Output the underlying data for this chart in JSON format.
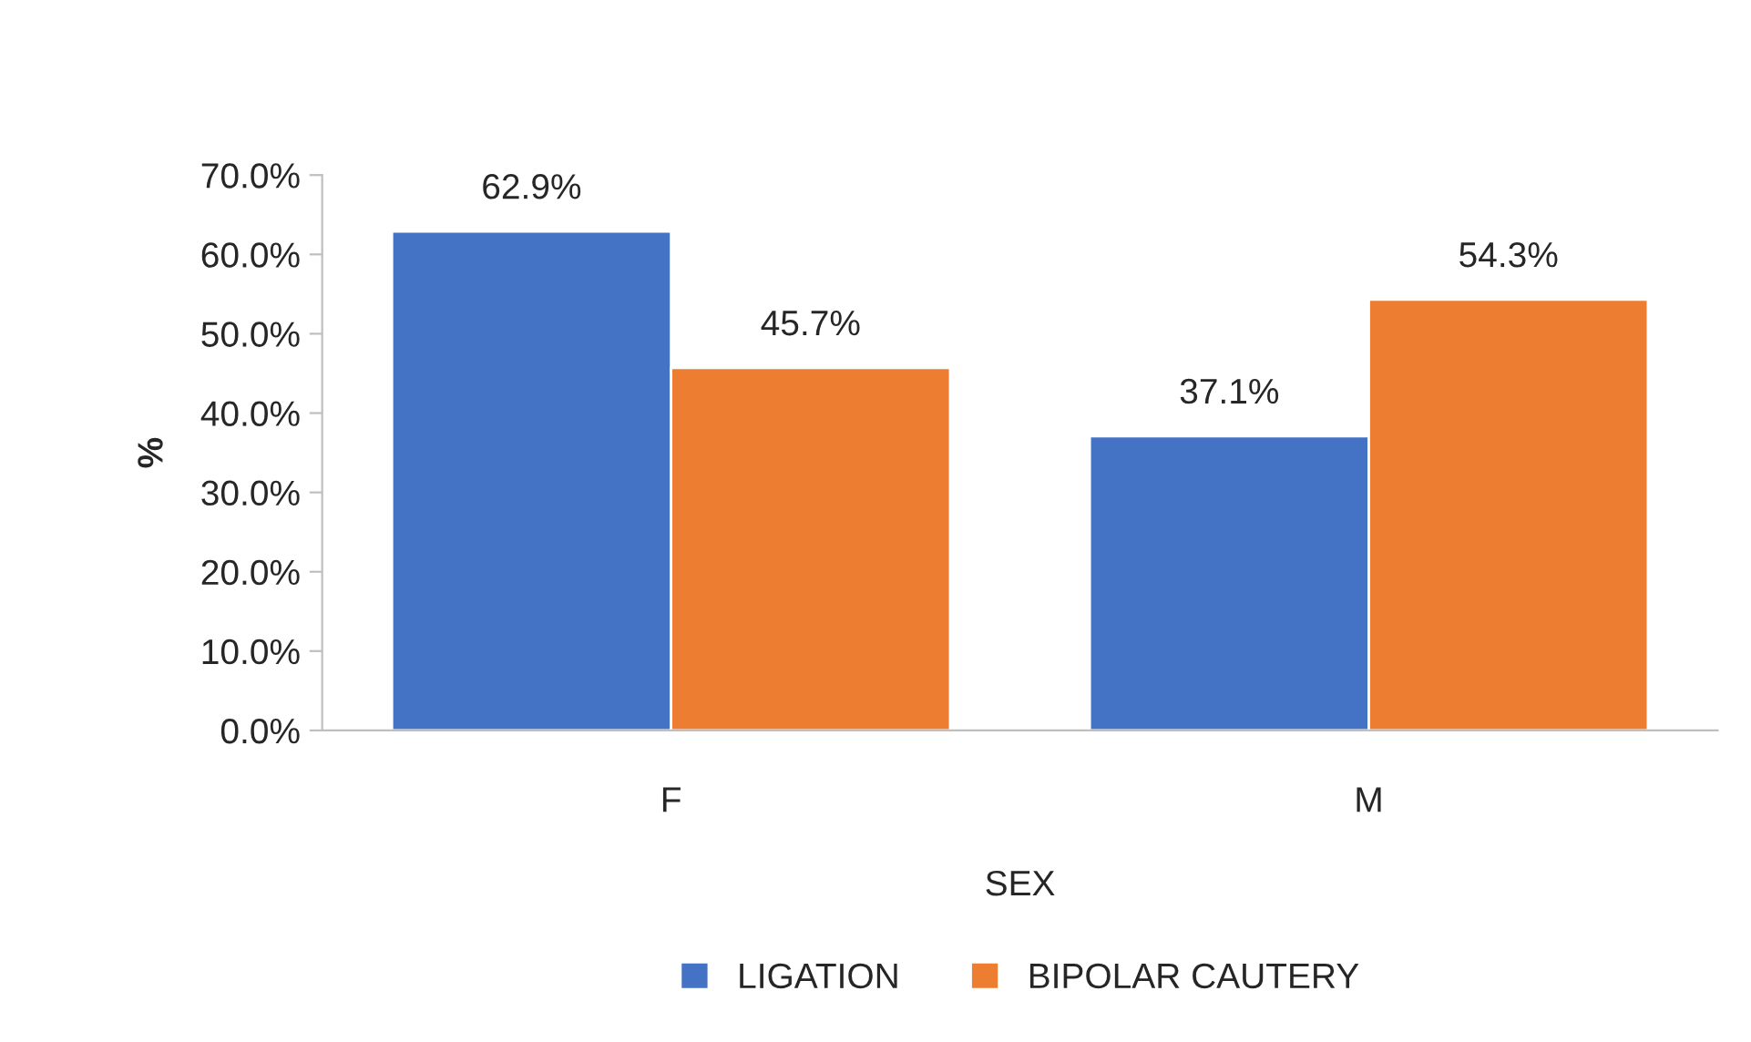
{
  "chart_data": {
    "type": "bar",
    "xlabel": "SEX",
    "ylabel": "%",
    "categories": [
      "F",
      "M"
    ],
    "series": [
      {
        "name": "LIGATION",
        "color": "#4472c4",
        "values": [
          62.9,
          37.1
        ],
        "value_labels": [
          "62.9%",
          "37.1%"
        ]
      },
      {
        "name": "BIPOLAR CAUTERY",
        "color": "#ed7d31",
        "values": [
          45.7,
          54.3
        ],
        "value_labels": [
          "45.7%",
          "54.3%"
        ]
      }
    ],
    "ylim": [
      0,
      70
    ],
    "yticks": [
      {
        "value": 0,
        "label": "0.0%"
      },
      {
        "value": 10,
        "label": "10.0%"
      },
      {
        "value": 20,
        "label": "20.0%"
      },
      {
        "value": 30,
        "label": "30.0%"
      },
      {
        "value": 40,
        "label": "40.0%"
      },
      {
        "value": 50,
        "label": "50.0%"
      },
      {
        "value": 60,
        "label": "60.0%"
      },
      {
        "value": 70,
        "label": "70.0%"
      }
    ],
    "grid": false,
    "legend": "bottom"
  }
}
